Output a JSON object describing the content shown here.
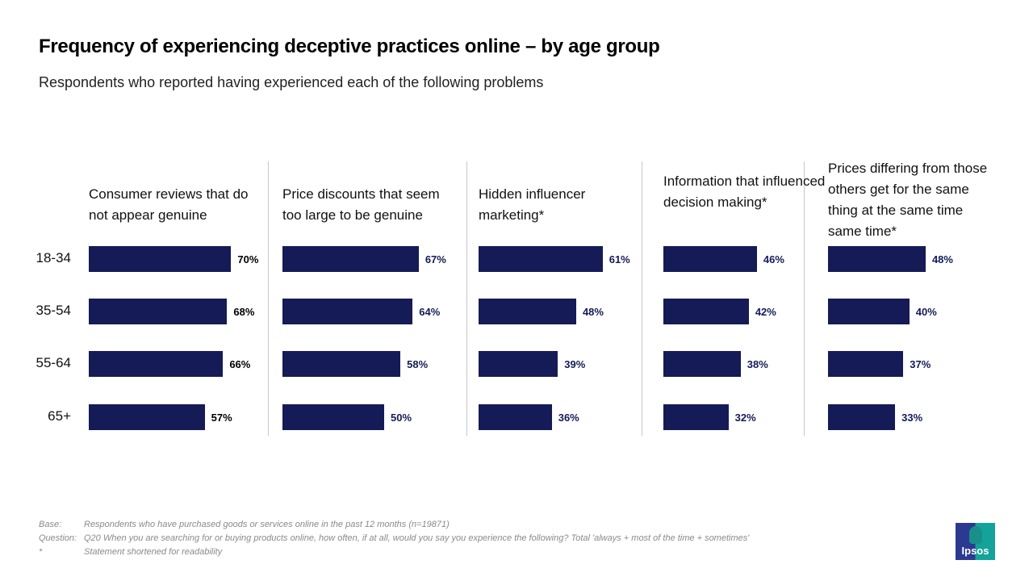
{
  "title": "Frequency of experiencing deceptive practices online – by age group",
  "subtitle": "Respondents who reported having experienced each of the following problems",
  "chart_data": {
    "type": "bar",
    "orientation": "horizontal",
    "categories": [
      "18-34",
      "35-54",
      "55-64",
      "65+"
    ],
    "series": [
      {
        "name": "Consumer reviews that do not appear genuine",
        "values": [
          70,
          68,
          66,
          57
        ]
      },
      {
        "name": "Price discounts that seem too large to be genuine",
        "values": [
          67,
          64,
          58,
          50
        ]
      },
      {
        "name": "Hidden influencer marketing*",
        "values": [
          61,
          48,
          39,
          36
        ]
      },
      {
        "name": "Information that influenced decision making*",
        "values": [
          46,
          42,
          38,
          32
        ]
      },
      {
        "name": "Prices differing from those others get for the same thing at the same time same time*",
        "values": [
          48,
          40,
          37,
          33
        ]
      }
    ],
    "value_labels": [
      [
        "70%",
        "68%",
        "66%",
        "57%"
      ],
      [
        "67%",
        "64%",
        "58%",
        "50%"
      ],
      [
        "61%",
        "48%",
        "39%",
        "36%"
      ],
      [
        "46%",
        "42%",
        "38%",
        "32%"
      ],
      [
        "48%",
        "40%",
        "37%",
        "33%"
      ]
    ],
    "unit": "%",
    "bar_color": "#141b56",
    "grid": false
  },
  "footnotes": [
    {
      "key": "Base:",
      "text": "Respondents who have purchased goods or services online in the past 12 months  (n=19871)"
    },
    {
      "key": "Question:",
      "text": "Q20 When you are searching for or buying products online, how often, if at all, would you say you experience the following? Total 'always + most of the time + sometimes'"
    },
    {
      "key": "*",
      "text": "Statement shortened for readability"
    }
  ],
  "logo": "Ipsos"
}
